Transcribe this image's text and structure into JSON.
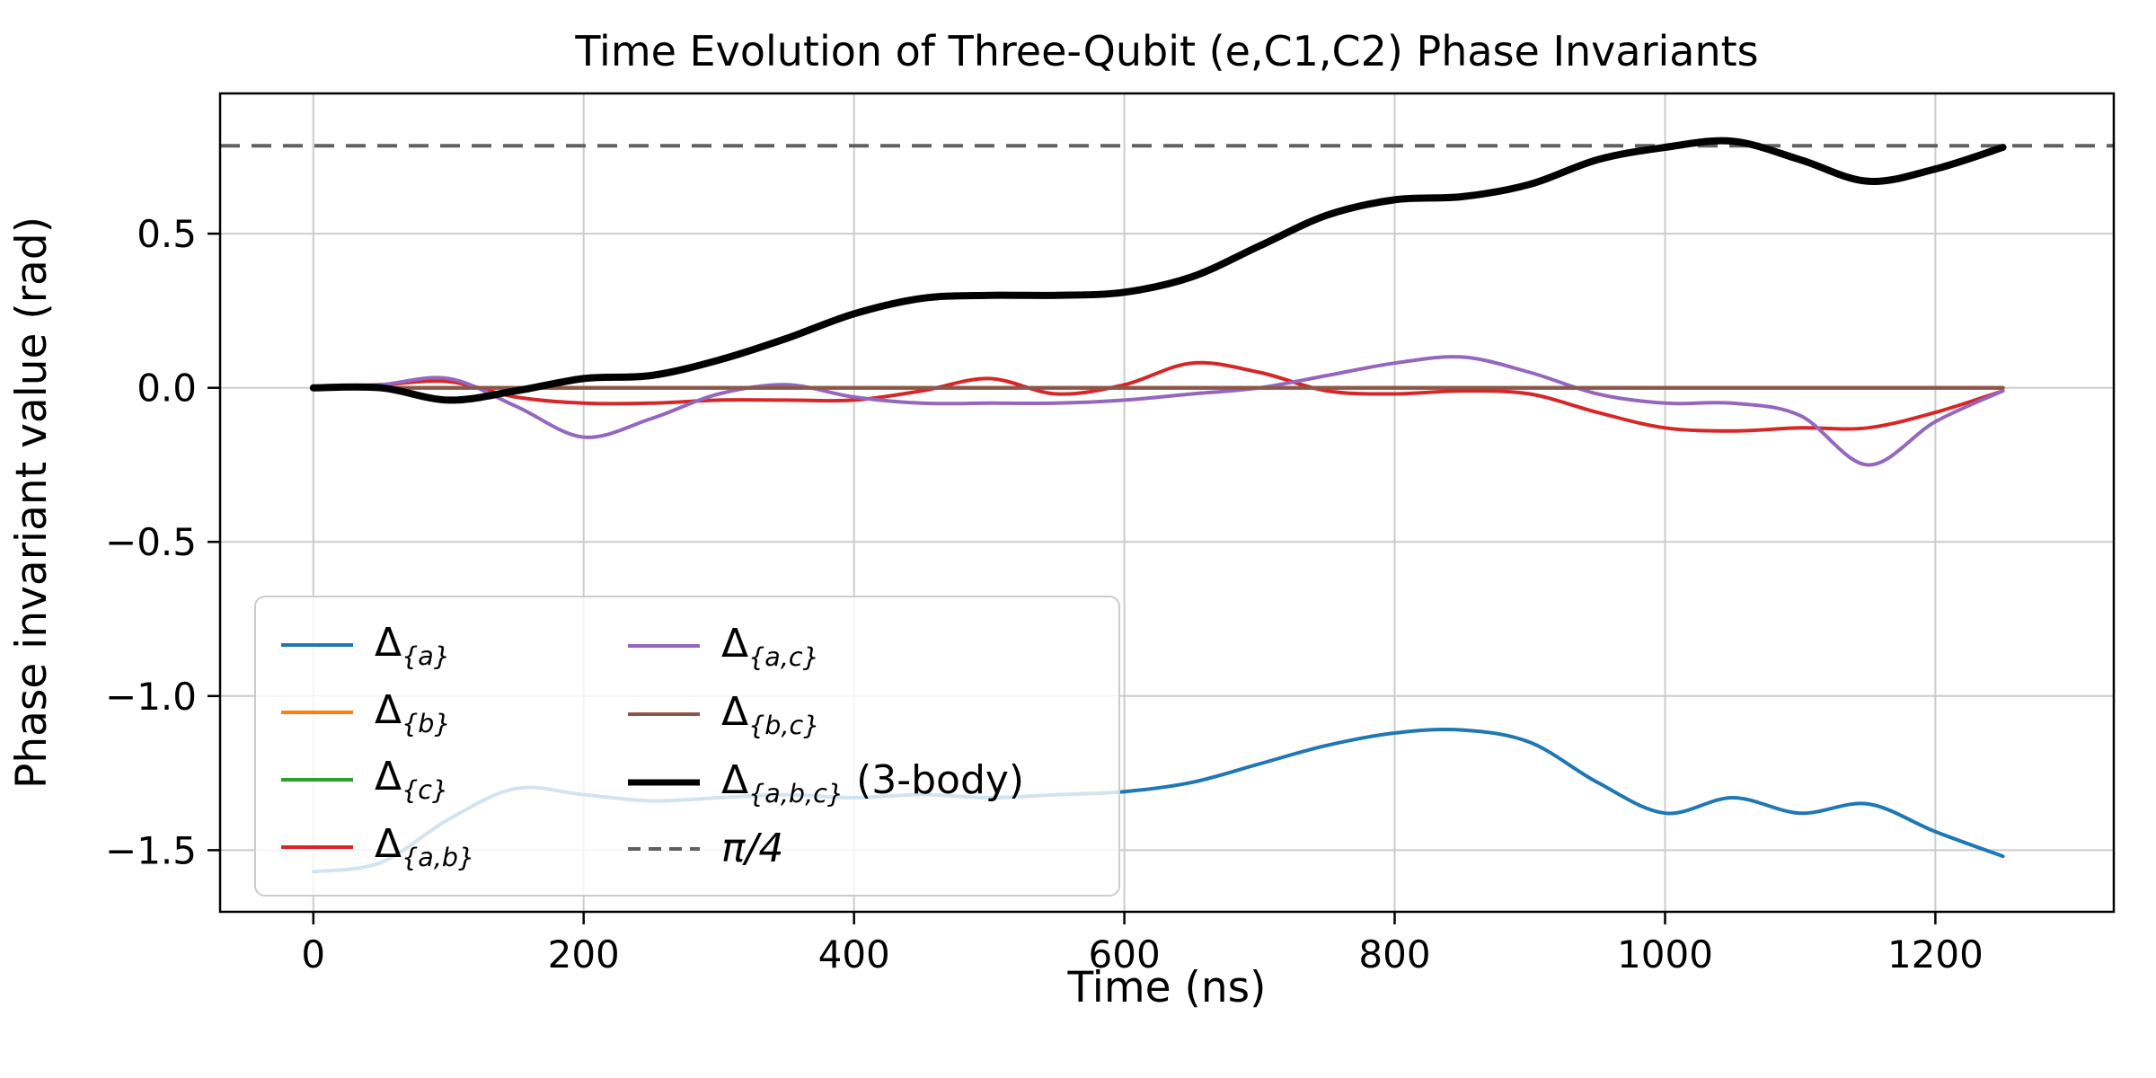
{
  "chart_data": {
    "type": "line",
    "title": "Time Evolution of Three-Qubit (e,C1,C2) Phase Invariants",
    "xlabel": "Time (ns)",
    "ylabel": "Phase invariant value (rad)",
    "grid": true,
    "legend_position": "lower left",
    "xlim": [
      -69,
      1332
    ],
    "ylim": [
      -1.7,
      0.955
    ],
    "x_ticks": [
      0,
      200,
      400,
      600,
      800,
      1000,
      1200
    ],
    "x_tick_labels": [
      "0",
      "200",
      "400",
      "600",
      "800",
      "1000",
      "1200"
    ],
    "y_ticks": [
      0.5,
      0.0,
      -0.5,
      -1.0,
      -1.5
    ],
    "y_tick_labels": [
      "0.5",
      "0.0",
      "−0.5",
      "−1.0",
      "−1.5"
    ],
    "x": [
      0,
      50,
      100,
      150,
      200,
      250,
      300,
      350,
      400,
      450,
      500,
      550,
      600,
      650,
      700,
      750,
      800,
      850,
      900,
      950,
      1000,
      1050,
      1100,
      1150,
      1200,
      1250
    ],
    "series": [
      {
        "key": "delta_a",
        "name": "Δ_{a}",
        "color": "#1f77b4",
        "width": 4,
        "values": [
          -1.57,
          -1.54,
          -1.4,
          -1.3,
          -1.32,
          -1.34,
          -1.33,
          -1.32,
          -1.33,
          -1.32,
          -1.33,
          -1.32,
          -1.31,
          -1.28,
          -1.22,
          -1.16,
          -1.12,
          -1.11,
          -1.15,
          -1.28,
          -1.38,
          -1.33,
          -1.38,
          -1.35,
          -1.44,
          -1.52
        ]
      },
      {
        "key": "delta_b",
        "name": "Δ_{b}",
        "color": "#ff7f0e",
        "width": 4,
        "values": [
          0,
          0,
          0,
          0,
          0,
          0,
          0,
          0,
          0,
          0,
          0,
          0,
          0,
          0,
          0,
          0,
          0,
          0,
          0,
          0,
          0,
          0,
          0,
          0,
          0,
          0
        ]
      },
      {
        "key": "delta_c",
        "name": "Δ_{c}",
        "color": "#2ca02c",
        "width": 4,
        "values": [
          0,
          0,
          0,
          0,
          0,
          0,
          0,
          0,
          0,
          0,
          0,
          0,
          0,
          0,
          0,
          0,
          0,
          0,
          0,
          0,
          0,
          0,
          0,
          0,
          0,
          0
        ]
      },
      {
        "key": "delta_ab",
        "name": "Δ_{a,b}",
        "color": "#d62728",
        "width": 4,
        "values": [
          0,
          0.01,
          0.02,
          -0.03,
          -0.05,
          -0.05,
          -0.04,
          -0.04,
          -0.04,
          -0.01,
          0.03,
          -0.02,
          0.01,
          0.08,
          0.05,
          -0.01,
          -0.02,
          -0.01,
          -0.02,
          -0.08,
          -0.13,
          -0.14,
          -0.13,
          -0.13,
          -0.08,
          -0.01
        ]
      },
      {
        "key": "delta_ac",
        "name": "Δ_{a,c}",
        "color": "#9467bd",
        "width": 4,
        "values": [
          0,
          0.01,
          0.03,
          -0.06,
          -0.16,
          -0.1,
          -0.02,
          0.01,
          -0.03,
          -0.05,
          -0.05,
          -0.05,
          -0.04,
          -0.02,
          0,
          0.04,
          0.08,
          0.1,
          0.05,
          -0.02,
          -0.05,
          -0.05,
          -0.09,
          -0.25,
          -0.11,
          -0.01
        ]
      },
      {
        "key": "delta_bc",
        "name": "Δ_{b,c}",
        "color": "#8c564b",
        "width": 4,
        "values": [
          0,
          0,
          0,
          0,
          0,
          0,
          0,
          0,
          0,
          0,
          0,
          0,
          0,
          0,
          0,
          0,
          0,
          0,
          0,
          0,
          0,
          0,
          0,
          0,
          0,
          0
        ]
      },
      {
        "key": "delta_abc",
        "name": "Δ_{a,b,c} (3-body)",
        "color": "#000000",
        "width": 8,
        "values": [
          0,
          0,
          -0.04,
          -0.01,
          0.03,
          0.04,
          0.09,
          0.16,
          0.24,
          0.29,
          0.3,
          0.3,
          0.31,
          0.36,
          0.46,
          0.56,
          0.61,
          0.62,
          0.66,
          0.74,
          0.78,
          0.8,
          0.74,
          0.67,
          0.71,
          0.78
        ]
      }
    ],
    "reference_line": {
      "key": "pi_over_4",
      "name": "π/4",
      "value": 0.7854,
      "color": "#606060",
      "width": 4,
      "style": "dashed"
    }
  }
}
